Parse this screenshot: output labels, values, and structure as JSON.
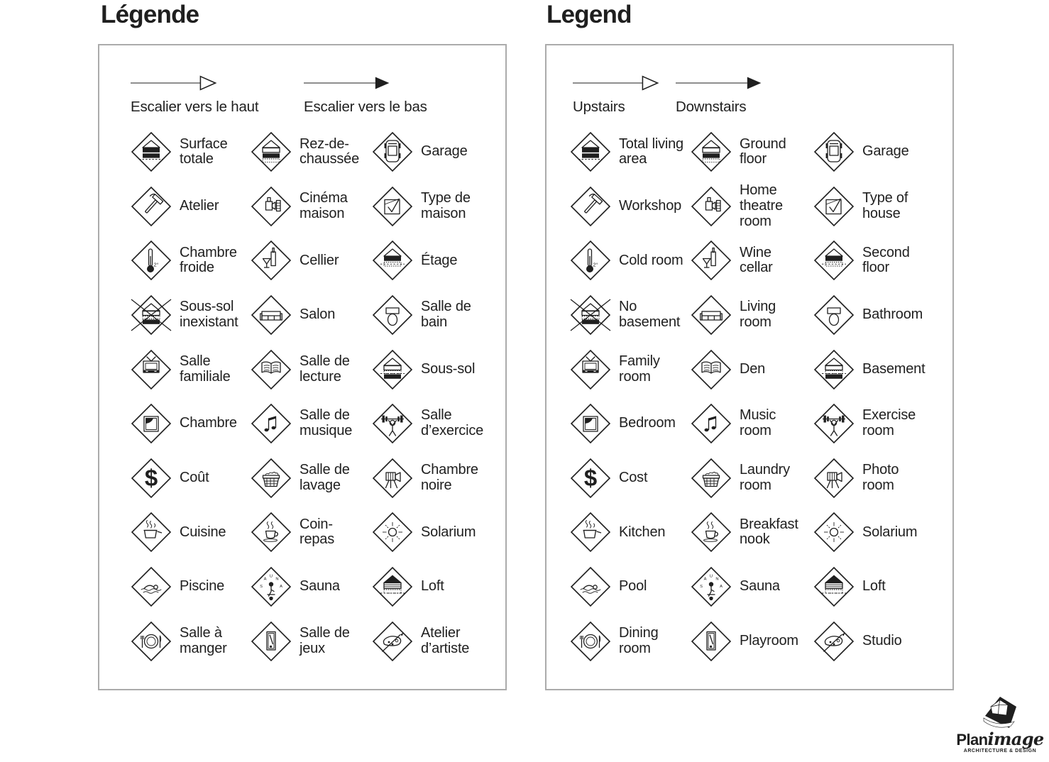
{
  "colors": {
    "ink": "#1f1f1f",
    "panel_border": "#ababab",
    "background": "#ffffff"
  },
  "panels": [
    {
      "id": "fr",
      "title": "Légende",
      "arrows": [
        {
          "icon": "arrow-up-open",
          "label": "Escalier vers le haut"
        },
        {
          "icon": "arrow-down-filled",
          "label": "Escalier vers le bas"
        }
      ],
      "items": [
        {
          "icon": "house-total-area",
          "label": "Surface totale"
        },
        {
          "icon": "house-ground-floor",
          "label": "Rez-de-chaussée"
        },
        {
          "icon": "garage-car",
          "label": "Garage"
        },
        {
          "icon": "hammer",
          "label": "Atelier"
        },
        {
          "icon": "movie-projector",
          "label": "Cinéma maison"
        },
        {
          "icon": "checkmark-sheet",
          "label": "Type de maison"
        },
        {
          "icon": "thermometer",
          "label": "Chambre froide"
        },
        {
          "icon": "wine-bottle-glass",
          "label": "Cellier"
        },
        {
          "icon": "house-second-floor",
          "label": "Étage"
        },
        {
          "icon": "house-no-basement",
          "label": "Sous-sol inexistant"
        },
        {
          "icon": "sofa",
          "label": "Salon"
        },
        {
          "icon": "toilet",
          "label": "Salle de bain"
        },
        {
          "icon": "tv-set",
          "label": "Salle familiale"
        },
        {
          "icon": "open-book",
          "label": "Salle de lecture"
        },
        {
          "icon": "house-basement",
          "label": "Sous-sol"
        },
        {
          "icon": "bed-blanket",
          "label": "Chambre"
        },
        {
          "icon": "music-notes",
          "label": "Salle de musique"
        },
        {
          "icon": "barbell-lifter",
          "label": "Salle d’exercice"
        },
        {
          "icon": "dollar-sign",
          "label": "Coût"
        },
        {
          "icon": "laundry-basket",
          "label": "Salle de lavage"
        },
        {
          "icon": "camera-tripod",
          "label": "Chambre noire"
        },
        {
          "icon": "cooking-pot",
          "label": "Cuisine"
        },
        {
          "icon": "coffee-cup",
          "label": "Coin-repas"
        },
        {
          "icon": "sun",
          "label": "Solarium"
        },
        {
          "icon": "swimmer",
          "label": "Piscine"
        },
        {
          "icon": "sauna-person",
          "label": "Sauna"
        },
        {
          "icon": "house-loft",
          "label": "Loft"
        },
        {
          "icon": "plate-cutlery",
          "label": "Salle à manger"
        },
        {
          "icon": "billiard-table",
          "label": "Salle de jeux"
        },
        {
          "icon": "paint-palette",
          "label": "Atelier d’artiste"
        }
      ]
    },
    {
      "id": "en",
      "title": "Legend",
      "arrows": [
        {
          "icon": "arrow-up-open",
          "label": "Upstairs"
        },
        {
          "icon": "arrow-down-filled",
          "label": "Downstairs"
        }
      ],
      "items": [
        {
          "icon": "house-total-area",
          "label": "Total living area"
        },
        {
          "icon": "house-ground-floor",
          "label": "Ground floor"
        },
        {
          "icon": "garage-car",
          "label": "Garage"
        },
        {
          "icon": "hammer",
          "label": "Workshop"
        },
        {
          "icon": "movie-projector",
          "label": "Home theatre room"
        },
        {
          "icon": "checkmark-sheet",
          "label": "Type of house"
        },
        {
          "icon": "thermometer",
          "label": "Cold room"
        },
        {
          "icon": "wine-bottle-glass",
          "label": "Wine cellar"
        },
        {
          "icon": "house-second-floor",
          "label": "Second floor"
        },
        {
          "icon": "house-no-basement",
          "label": "No basement"
        },
        {
          "icon": "sofa",
          "label": "Living room"
        },
        {
          "icon": "toilet",
          "label": "Bathroom"
        },
        {
          "icon": "tv-set",
          "label": "Family room"
        },
        {
          "icon": "open-book",
          "label": "Den"
        },
        {
          "icon": "house-basement",
          "label": "Basement"
        },
        {
          "icon": "bed-blanket",
          "label": "Bedroom"
        },
        {
          "icon": "music-notes",
          "label": "Music room"
        },
        {
          "icon": "barbell-lifter",
          "label": "Exercise room"
        },
        {
          "icon": "dollar-sign",
          "label": "Cost"
        },
        {
          "icon": "laundry-basket",
          "label": "Laundry room"
        },
        {
          "icon": "camera-tripod",
          "label": "Photo room"
        },
        {
          "icon": "cooking-pot",
          "label": "Kitchen"
        },
        {
          "icon": "coffee-cup",
          "label": "Breakfast nook"
        },
        {
          "icon": "sun",
          "label": "Solarium"
        },
        {
          "icon": "swimmer",
          "label": "Pool"
        },
        {
          "icon": "sauna-person",
          "label": "Sauna"
        },
        {
          "icon": "house-loft",
          "label": "Loft"
        },
        {
          "icon": "plate-cutlery",
          "label": "Dining room"
        },
        {
          "icon": "billiard-table",
          "label": "Playroom"
        },
        {
          "icon": "paint-palette",
          "label": "Studio"
        }
      ]
    }
  ],
  "logo": {
    "brand_bold": "Plan",
    "brand_italic": "image",
    "tagline": "ARCHITECTURE & DESIGN"
  }
}
